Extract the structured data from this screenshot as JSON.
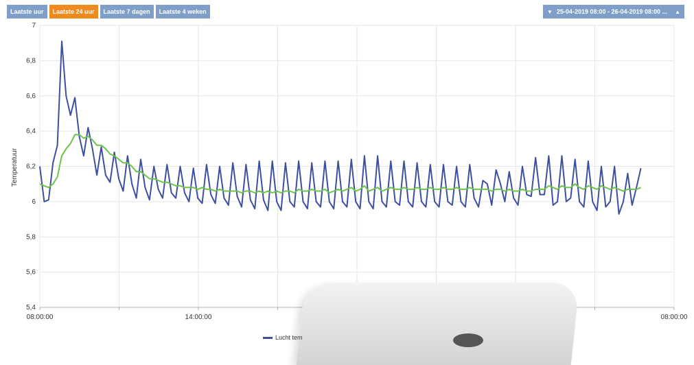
{
  "toolbar": {
    "buttons": [
      {
        "label": "Laatste uur",
        "active": false
      },
      {
        "label": "Laatste 24 uur",
        "active": true
      },
      {
        "label": "Laatste 7 dagen",
        "active": false
      },
      {
        "label": "Laatste 4 weken",
        "active": false
      }
    ]
  },
  "date_range": {
    "label": "25-04-2019 08:00 - 26-04-2019 08:00 ...",
    "left_icon": "triangle-down-icon",
    "right_icon": "triangle-up-icon"
  },
  "colors": {
    "accent_active": "#ef8a1f",
    "button": "#7f9fc8",
    "series_raw": "#3c4fa0",
    "series_avg": "#6cc24a"
  },
  "chart_data": {
    "type": "line",
    "ylabel": "Temperatuur",
    "ylim": [
      5.4,
      7.0
    ],
    "yticks": [
      "7",
      "6,8",
      "6,6",
      "6,4",
      "6,2",
      "6",
      "5,8",
      "5,6",
      "5,4"
    ],
    "xlim_hours": [
      0,
      24
    ],
    "xticks": [
      {
        "label": "08:00:00",
        "hour": 0
      },
      {
        "label": "14:00:00",
        "hour": 6
      },
      {
        "label": "08:00:00",
        "hour": 24
      }
    ],
    "grid": true,
    "legend": {
      "position": "bottom",
      "visible_text": "Lucht tem"
    },
    "series": [
      {
        "color": "#3c4fa0",
        "step_hours": 0.166,
        "values": [
          6.2,
          6.0,
          6.01,
          6.22,
          6.32,
          6.91,
          6.6,
          6.49,
          6.59,
          6.37,
          6.26,
          6.42,
          6.3,
          6.15,
          6.31,
          6.15,
          6.11,
          6.28,
          6.13,
          6.06,
          6.26,
          6.1,
          6.02,
          6.24,
          6.08,
          6.01,
          6.2,
          6.07,
          6.02,
          6.21,
          6.05,
          6.02,
          6.2,
          6.05,
          6.0,
          6.19,
          6.02,
          5.99,
          6.21,
          6.04,
          5.99,
          6.2,
          6.02,
          5.98,
          6.22,
          6.03,
          5.97,
          6.21,
          6.01,
          5.96,
          6.23,
          6.01,
          5.95,
          6.23,
          6.0,
          5.95,
          6.22,
          6.0,
          5.97,
          6.23,
          6.0,
          5.96,
          6.22,
          6.0,
          5.97,
          6.23,
          6.0,
          5.96,
          6.23,
          6.0,
          5.97,
          6.24,
          6.0,
          5.96,
          6.26,
          6.0,
          5.96,
          6.26,
          6.0,
          5.97,
          6.23,
          6.0,
          5.98,
          6.23,
          6.0,
          5.97,
          6.22,
          6.0,
          5.97,
          6.21,
          6.0,
          5.97,
          6.21,
          6.0,
          5.98,
          6.2,
          6.0,
          5.97,
          6.21,
          6.02,
          5.97,
          6.12,
          6.1,
          5.98,
          6.18,
          6.1,
          6.0,
          6.17,
          6.02,
          5.98,
          6.2,
          6.04,
          6.03,
          6.25,
          6.04,
          6.04,
          6.26,
          5.98,
          6.0,
          6.26,
          6.0,
          6.02,
          6.24,
          6.0,
          5.97,
          6.23,
          6.0,
          5.95,
          6.2,
          5.97,
          6.0,
          6.2,
          5.93,
          6.0,
          6.16,
          5.98,
          6.08,
          6.19
        ]
      },
      {
        "color": "#6cc24a",
        "step_hours": 0.166,
        "values": [
          6.1,
          6.09,
          6.08,
          6.1,
          6.14,
          6.26,
          6.3,
          6.33,
          6.38,
          6.38,
          6.36,
          6.37,
          6.35,
          6.32,
          6.32,
          6.3,
          6.27,
          6.26,
          6.24,
          6.22,
          6.22,
          6.2,
          6.17,
          6.17,
          6.15,
          6.13,
          6.13,
          6.12,
          6.11,
          6.11,
          6.1,
          6.09,
          6.09,
          6.08,
          6.08,
          6.08,
          6.07,
          6.08,
          6.07,
          6.07,
          6.06,
          6.07,
          6.06,
          6.06,
          6.06,
          6.06,
          6.05,
          6.06,
          6.06,
          6.05,
          6.06,
          6.05,
          6.06,
          6.05,
          6.06,
          6.05,
          6.06,
          6.06,
          6.05,
          6.07,
          6.06,
          6.06,
          6.07,
          6.06,
          6.06,
          6.07,
          6.05,
          6.06,
          6.07,
          6.06,
          6.07,
          6.08,
          6.06,
          6.07,
          6.09,
          6.06,
          6.07,
          6.08,
          6.06,
          6.07,
          6.08,
          6.07,
          6.07,
          6.08,
          6.07,
          6.07,
          6.08,
          6.07,
          6.07,
          6.08,
          6.07,
          6.07,
          6.08,
          6.07,
          6.07,
          6.08,
          6.07,
          6.07,
          6.08,
          6.07,
          6.07,
          6.07,
          6.07,
          6.06,
          6.07,
          6.07,
          6.06,
          6.07,
          6.06,
          6.06,
          6.07,
          6.06,
          6.06,
          6.07,
          6.07,
          6.07,
          6.09,
          6.08,
          6.07,
          6.09,
          6.08,
          6.08,
          6.1,
          6.08,
          6.07,
          6.09,
          6.08,
          6.07,
          6.09,
          6.08,
          6.07,
          6.08,
          6.07,
          6.06,
          6.07,
          6.07,
          6.07,
          6.08
        ]
      }
    ]
  }
}
